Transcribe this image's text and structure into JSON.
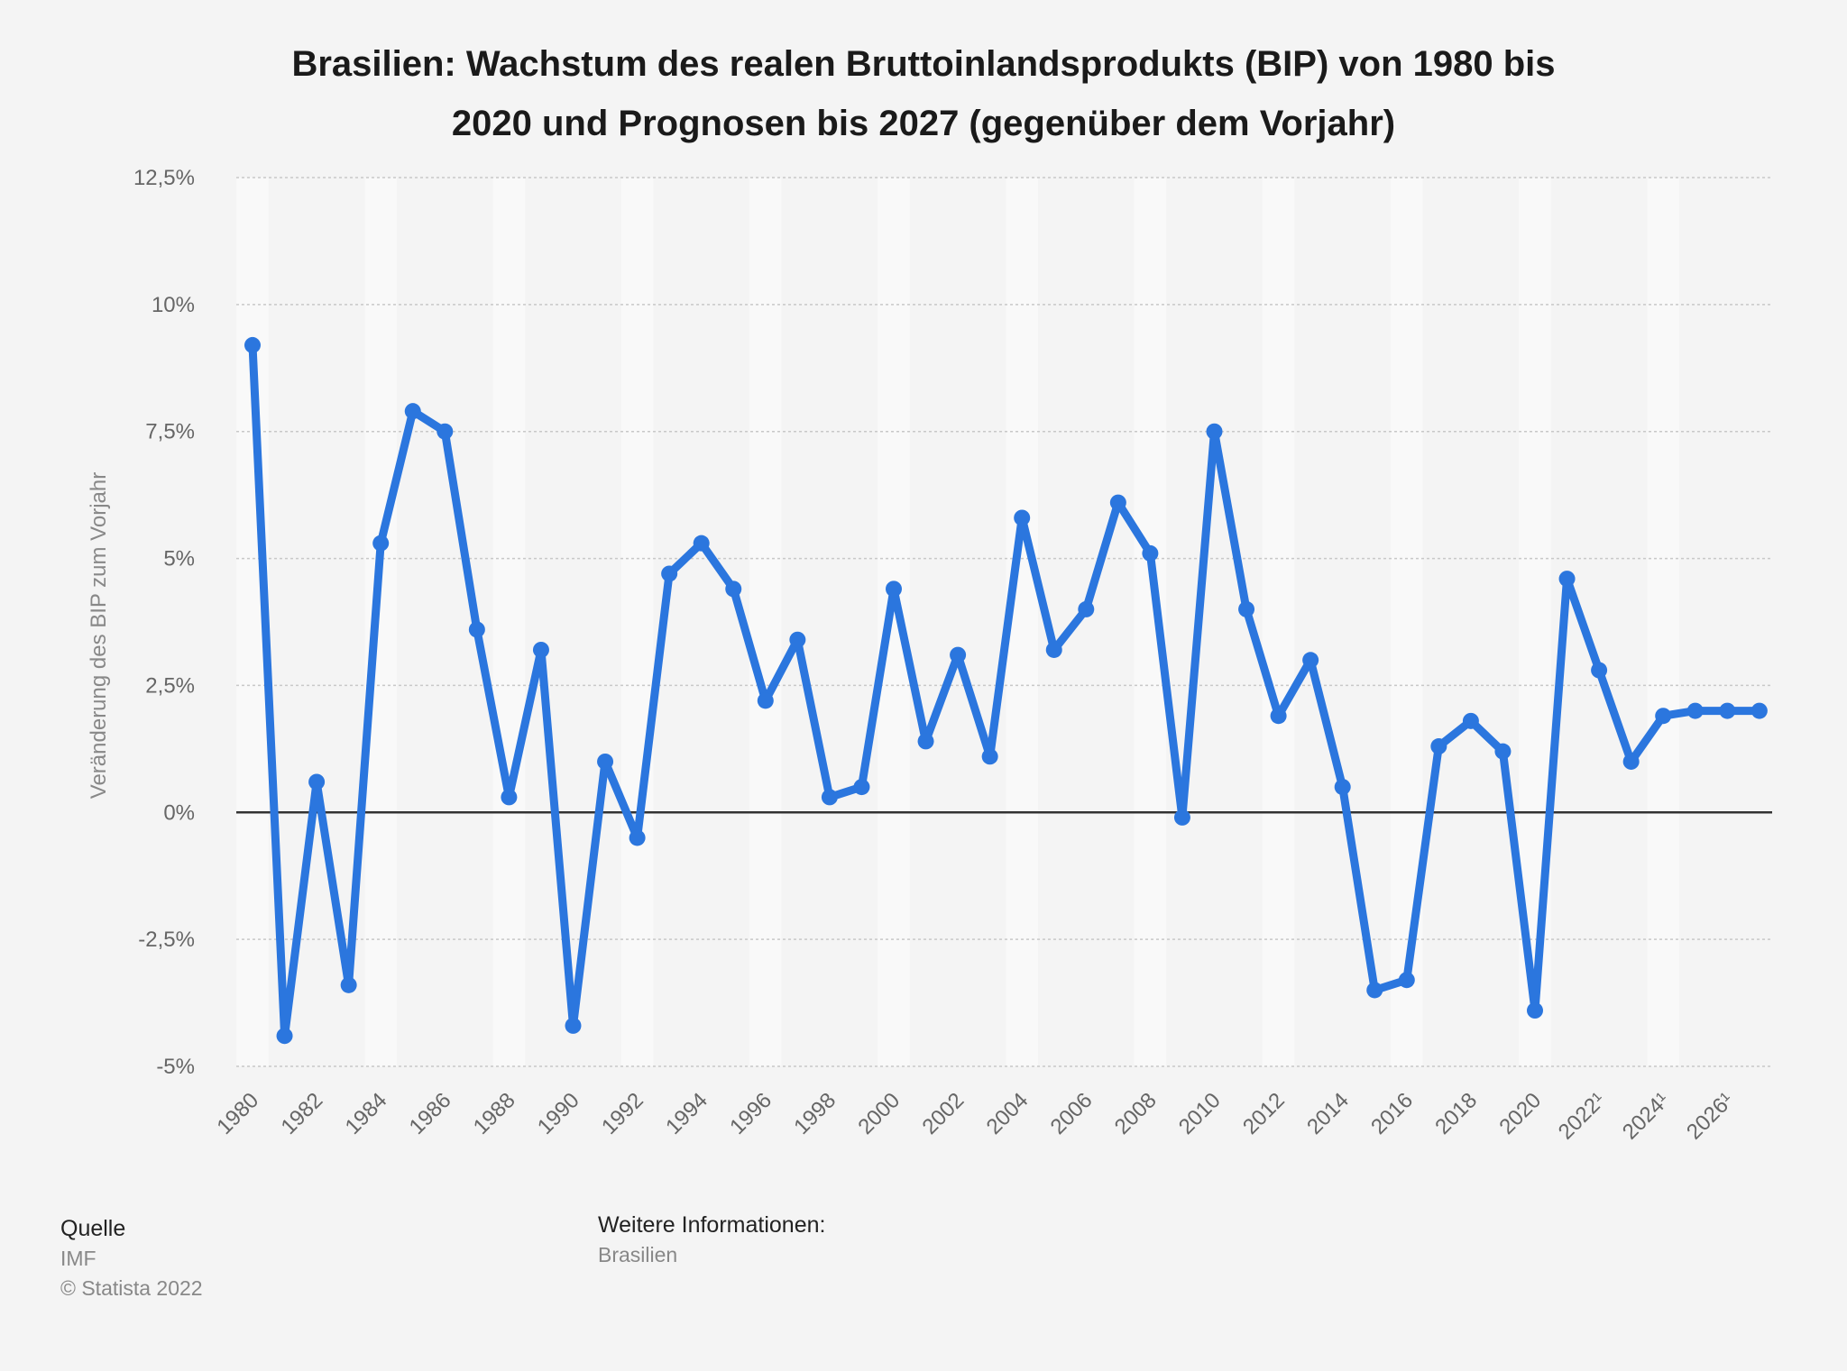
{
  "chart_data": {
    "type": "line",
    "title_line1": "Brasilien: Wachstum des realen Bruttoinlandsprodukts (BIP) von 1980 bis",
    "title_line2": "2020 und Prognosen bis 2027 (gegenüber dem Vorjahr)",
    "xlabel": "",
    "ylabel": "Veränderung des BIP zum Vorjahr",
    "ylim": [
      -5,
      12.5
    ],
    "y_ticks": [
      {
        "value": 12.5,
        "label": "12,5%"
      },
      {
        "value": 10,
        "label": "10%"
      },
      {
        "value": 7.5,
        "label": "7,5%"
      },
      {
        "value": 5,
        "label": "5%"
      },
      {
        "value": 2.5,
        "label": "2,5%"
      },
      {
        "value": 0,
        "label": "0%"
      },
      {
        "value": -2.5,
        "label": "-2,5%"
      },
      {
        "value": -5,
        "label": "-5%"
      }
    ],
    "x": [
      1980,
      1981,
      1982,
      1983,
      1984,
      1985,
      1986,
      1987,
      1988,
      1989,
      1990,
      1991,
      1992,
      1993,
      1994,
      1995,
      1996,
      1997,
      1998,
      1999,
      2000,
      2001,
      2002,
      2003,
      2004,
      2005,
      2006,
      2007,
      2008,
      2009,
      2010,
      2011,
      2012,
      2013,
      2014,
      2015,
      2016,
      2017,
      2018,
      2019,
      2020,
      2021,
      2022,
      2023,
      2024,
      2025,
      2026,
      2027
    ],
    "x_tick_labels": [
      "1980",
      "1982",
      "1984",
      "1986",
      "1988",
      "1990",
      "1992",
      "1994",
      "1996",
      "1998",
      "2000",
      "2002",
      "2004",
      "2006",
      "2008",
      "2010",
      "2012",
      "2014",
      "2016",
      "2018",
      "2020",
      "2022¹",
      "2024¹",
      "2026¹"
    ],
    "series": [
      {
        "name": "",
        "color": "#2b76de",
        "values": [
          9.2,
          -4.4,
          0.6,
          -3.4,
          5.3,
          7.9,
          7.5,
          3.6,
          0.3,
          3.2,
          -4.2,
          1.0,
          -0.5,
          4.7,
          5.3,
          4.4,
          2.2,
          3.4,
          0.3,
          0.5,
          4.4,
          1.4,
          3.1,
          1.1,
          5.8,
          3.2,
          4.0,
          6.1,
          5.1,
          -0.1,
          7.5,
          4.0,
          1.9,
          3.0,
          0.5,
          -3.5,
          -3.3,
          1.3,
          1.8,
          1.2,
          -3.9,
          4.6,
          2.8,
          1.0,
          1.9,
          2.0,
          2.0,
          2.0
        ]
      }
    ],
    "grid": true,
    "legend": "none"
  },
  "footer": {
    "source_heading": "Quelle",
    "source_name": "IMF",
    "copyright": "© Statista 2022",
    "info_heading": "Weitere Informationen:",
    "info_value": "Brasilien"
  }
}
